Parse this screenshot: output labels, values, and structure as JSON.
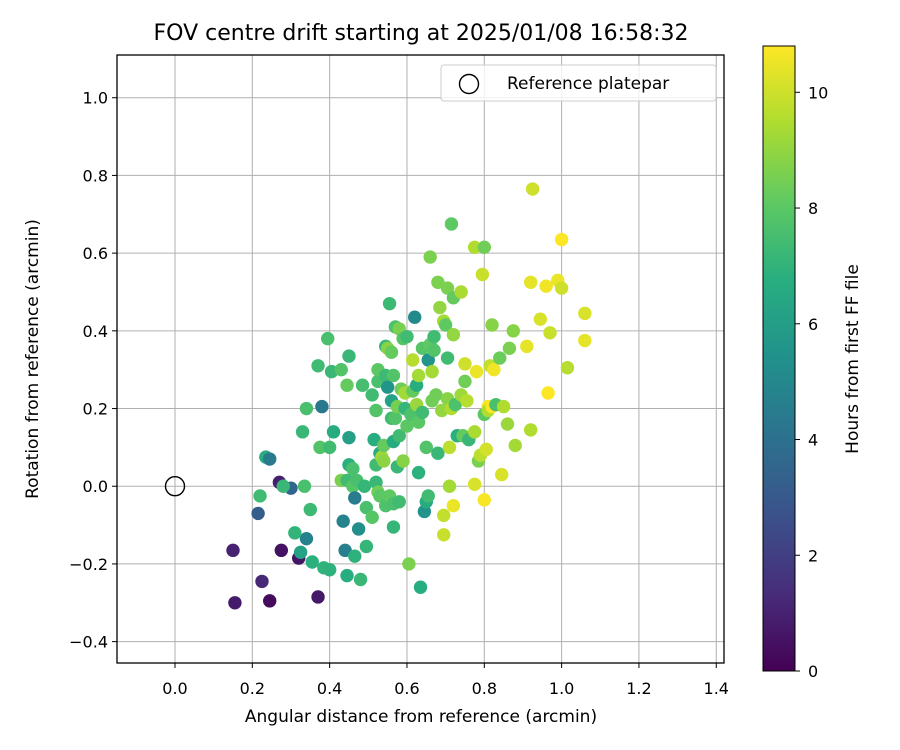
{
  "chart_data": {
    "type": "scatter",
    "title": "FOV centre drift starting at 2025/01/08 16:58:32",
    "xlabel": "Angular distance from reference (arcmin)",
    "ylabel": "Rotation from reference (arcmin)",
    "xlim": [
      -0.15,
      1.42
    ],
    "ylim": [
      -0.455,
      1.11
    ],
    "xticks": [
      0.0,
      0.2,
      0.4,
      0.6,
      0.8,
      1.0,
      1.2,
      1.4
    ],
    "xtick_labels": [
      "0.0",
      "0.2",
      "0.4",
      "0.6",
      "0.8",
      "1.0",
      "1.2",
      "1.4"
    ],
    "yticks": [
      -0.4,
      -0.2,
      0.0,
      0.2,
      0.4,
      0.6,
      0.8,
      1.0
    ],
    "ytick_labels": [
      "−0.4",
      "−0.2",
      "0.0",
      "0.2",
      "0.4",
      "0.6",
      "0.8",
      "1.0"
    ],
    "grid": true,
    "legend": {
      "position": "top-right",
      "entries": [
        "Reference platepar"
      ]
    },
    "reference_point": {
      "x": 0.0,
      "y": 0.0
    },
    "colorbar": {
      "label": "Hours from first FF file",
      "colormap": "viridis",
      "range": [
        0,
        10.8
      ],
      "ticks": [
        0,
        2,
        4,
        6,
        8,
        10
      ],
      "tick_labels": [
        "0",
        "2",
        "4",
        "6",
        "8",
        "10"
      ]
    },
    "points": [
      [
        0.15,
        -0.165,
        1.0
      ],
      [
        0.155,
        -0.3,
        0.8
      ],
      [
        0.225,
        -0.245,
        1.2
      ],
      [
        0.245,
        -0.295,
        0.3
      ],
      [
        0.275,
        -0.165,
        0.5
      ],
      [
        0.27,
        0.01,
        0.9
      ],
      [
        0.32,
        -0.185,
        0.6
      ],
      [
        0.37,
        -0.285,
        0.7
      ],
      [
        0.215,
        -0.07,
        3.2
      ],
      [
        0.235,
        0.075,
        6.6
      ],
      [
        0.245,
        0.07,
        4.4
      ],
      [
        0.3,
        -0.005,
        3.5
      ],
      [
        0.325,
        -0.17,
        6.2
      ],
      [
        0.34,
        -0.135,
        4.7
      ],
      [
        0.22,
        -0.025,
        7.4
      ],
      [
        0.28,
        0.0,
        7.2
      ],
      [
        0.335,
        0.0,
        7.6
      ],
      [
        0.31,
        -0.12,
        7.0
      ],
      [
        0.35,
        -0.06,
        7.3
      ],
      [
        0.355,
        -0.195,
        6.8
      ],
      [
        0.385,
        -0.21,
        7.0
      ],
      [
        0.4,
        -0.215,
        6.9
      ],
      [
        0.33,
        0.14,
        7.2
      ],
      [
        0.34,
        0.2,
        7.6
      ],
      [
        0.375,
        0.1,
        7.8
      ],
      [
        0.38,
        0.205,
        4.3
      ],
      [
        0.37,
        0.31,
        7.4
      ],
      [
        0.395,
        0.38,
        7.6
      ],
      [
        0.4,
        0.1,
        7.4
      ],
      [
        0.41,
        0.14,
        6.6
      ],
      [
        0.405,
        0.295,
        7.2
      ],
      [
        0.43,
        0.3,
        7.8
      ],
      [
        0.43,
        0.015,
        8.6
      ],
      [
        0.435,
        -0.09,
        4.8
      ],
      [
        0.44,
        -0.165,
        4.6
      ],
      [
        0.445,
        -0.23,
        6.7
      ],
      [
        0.445,
        0.015,
        7.4
      ],
      [
        0.45,
        0.335,
        7.2
      ],
      [
        0.445,
        0.26,
        8.2
      ],
      [
        0.45,
        0.125,
        6.1
      ],
      [
        0.45,
        0.055,
        6.8
      ],
      [
        0.46,
        0.045,
        7.6
      ],
      [
        0.46,
        0.0,
        7.9
      ],
      [
        0.465,
        -0.03,
        4.5
      ],
      [
        0.465,
        -0.18,
        6.9
      ],
      [
        0.47,
        0.015,
        7.6
      ],
      [
        0.475,
        -0.11,
        5.3
      ],
      [
        0.48,
        -0.24,
        7.2
      ],
      [
        0.485,
        0.26,
        7.5
      ],
      [
        0.49,
        0.0,
        7.1
      ],
      [
        0.495,
        -0.155,
        7.1
      ],
      [
        0.495,
        -0.055,
        7.6
      ],
      [
        0.51,
        -0.08,
        7.9
      ],
      [
        0.51,
        0.235,
        7.4
      ],
      [
        0.515,
        0.12,
        6.7
      ],
      [
        0.52,
        0.195,
        7.8
      ],
      [
        0.52,
        0.055,
        7.4
      ],
      [
        0.52,
        0.01,
        7.2
      ],
      [
        0.525,
        -0.015,
        8.4
      ],
      [
        0.525,
        0.27,
        7.6
      ],
      [
        0.525,
        0.3,
        8.0
      ],
      [
        0.53,
        0.085,
        6.6
      ],
      [
        0.53,
        -0.025,
        8.0
      ],
      [
        0.535,
        0.075,
        9.2
      ],
      [
        0.54,
        0.105,
        8.2
      ],
      [
        0.54,
        0.065,
        8.9
      ],
      [
        0.545,
        0.285,
        7.3
      ],
      [
        0.545,
        -0.05,
        7.7
      ],
      [
        0.545,
        0.36,
        7.2
      ],
      [
        0.55,
        0.355,
        8.8
      ],
      [
        0.55,
        0.255,
        5.6
      ],
      [
        0.555,
        -0.025,
        8.1
      ],
      [
        0.555,
        0.47,
        7.3
      ],
      [
        0.56,
        0.175,
        7.4
      ],
      [
        0.56,
        0.22,
        6.2
      ],
      [
        0.56,
        0.345,
        8.2
      ],
      [
        0.565,
        0.285,
        7.8
      ],
      [
        0.565,
        0.115,
        6.6
      ],
      [
        0.565,
        -0.105,
        7.1
      ],
      [
        0.565,
        -0.045,
        7.6
      ],
      [
        0.57,
        0.175,
        7.8
      ],
      [
        0.57,
        0.41,
        7.7
      ],
      [
        0.575,
        0.205,
        8.5
      ],
      [
        0.575,
        0.05,
        7.2
      ],
      [
        0.58,
        -0.04,
        7.4
      ],
      [
        0.58,
        0.405,
        8.6
      ],
      [
        0.58,
        0.13,
        7.4
      ],
      [
        0.585,
        0.25,
        8.4
      ],
      [
        0.59,
        0.065,
        8.8
      ],
      [
        0.59,
        0.38,
        7.9
      ],
      [
        0.595,
        0.24,
        9.3
      ],
      [
        0.595,
        0.2,
        7.1
      ],
      [
        0.6,
        0.385,
        7.4
      ],
      [
        0.6,
        0.155,
        8.0
      ],
      [
        0.605,
        -0.2,
        8.6
      ],
      [
        0.61,
        0.185,
        7.7
      ],
      [
        0.615,
        0.245,
        8.2
      ],
      [
        0.615,
        0.325,
        9.6
      ],
      [
        0.62,
        0.435,
        5.1
      ],
      [
        0.625,
        0.21,
        9.1
      ],
      [
        0.625,
        0.26,
        6.7
      ],
      [
        0.63,
        0.165,
        8.0
      ],
      [
        0.63,
        0.285,
        9.3
      ],
      [
        0.63,
        0.035,
        6.9
      ],
      [
        0.635,
        -0.26,
        6.7
      ],
      [
        0.64,
        0.355,
        7.9
      ],
      [
        0.64,
        0.19,
        7.4
      ],
      [
        0.645,
        -0.065,
        5.5
      ],
      [
        0.65,
        -0.04,
        6.6
      ],
      [
        0.65,
        0.1,
        7.8
      ],
      [
        0.655,
        -0.025,
        7.4
      ],
      [
        0.655,
        0.325,
        5.6
      ],
      [
        0.66,
        0.365,
        8.1
      ],
      [
        0.66,
        0.59,
        8.6
      ],
      [
        0.665,
        0.22,
        8.4
      ],
      [
        0.665,
        0.295,
        9.3
      ],
      [
        0.67,
        0.35,
        7.8
      ],
      [
        0.67,
        0.385,
        7.4
      ],
      [
        0.675,
        0.235,
        8.4
      ],
      [
        0.68,
        0.085,
        7.2
      ],
      [
        0.68,
        0.525,
        8.6
      ],
      [
        0.685,
        0.46,
        9.0
      ],
      [
        0.69,
        0.195,
        9.0
      ],
      [
        0.695,
        -0.075,
        9.8
      ],
      [
        0.695,
        -0.125,
        9.9
      ],
      [
        0.695,
        0.425,
        9.3
      ],
      [
        0.7,
        0.415,
        8.1
      ],
      [
        0.705,
        0.33,
        7.4
      ],
      [
        0.705,
        0.225,
        8.8
      ],
      [
        0.705,
        0.51,
        8.6
      ],
      [
        0.71,
        0.1,
        9.7
      ],
      [
        0.71,
        0.0,
        9.3
      ],
      [
        0.715,
        0.2,
        9.5
      ],
      [
        0.715,
        0.675,
        8.1
      ],
      [
        0.72,
        0.485,
        8.2
      ],
      [
        0.72,
        0.39,
        9.0
      ],
      [
        0.72,
        -0.05,
        10.5
      ],
      [
        0.725,
        0.21,
        7.7
      ],
      [
        0.73,
        0.13,
        6.8
      ],
      [
        0.74,
        0.235,
        9.2
      ],
      [
        0.74,
        0.5,
        9.4
      ],
      [
        0.745,
        0.13,
        8.2
      ],
      [
        0.75,
        0.315,
        10.0
      ],
      [
        0.75,
        0.27,
        8.4
      ],
      [
        0.755,
        0.22,
        9.6
      ],
      [
        0.76,
        0.12,
        7.2
      ],
      [
        0.775,
        0.14,
        9.4
      ],
      [
        0.775,
        0.615,
        9.5
      ],
      [
        0.775,
        0.005,
        10.2
      ],
      [
        0.78,
        0.295,
        10.5
      ],
      [
        0.785,
        0.065,
        8.6
      ],
      [
        0.79,
        0.08,
        9.7
      ],
      [
        0.795,
        0.545,
        9.9
      ],
      [
        0.8,
        0.615,
        8.4
      ],
      [
        0.8,
        -0.035,
        10.7
      ],
      [
        0.8,
        0.185,
        8.0
      ],
      [
        0.805,
        0.095,
        10.1
      ],
      [
        0.81,
        0.205,
        10.7
      ],
      [
        0.81,
        0.195,
        9.5
      ],
      [
        0.815,
        0.31,
        9.8
      ],
      [
        0.82,
        0.415,
        8.8
      ],
      [
        0.82,
        0.205,
        10.8
      ],
      [
        0.825,
        0.3,
        10.6
      ],
      [
        0.83,
        0.21,
        7.6
      ],
      [
        0.84,
        0.33,
        8.3
      ],
      [
        0.845,
        0.03,
        10.2
      ],
      [
        0.85,
        0.205,
        9.5
      ],
      [
        0.86,
        0.16,
        9.1
      ],
      [
        0.865,
        0.355,
        8.6
      ],
      [
        0.875,
        0.4,
        8.8
      ],
      [
        0.88,
        0.105,
        9.3
      ],
      [
        0.91,
        0.36,
        10.4
      ],
      [
        0.92,
        0.145,
        9.5
      ],
      [
        0.92,
        0.525,
        10.4
      ],
      [
        0.925,
        0.765,
        10.0
      ],
      [
        0.945,
        0.43,
        10.2
      ],
      [
        0.96,
        0.515,
        10.6
      ],
      [
        0.965,
        0.24,
        10.9
      ],
      [
        0.97,
        0.395,
        9.9
      ],
      [
        0.99,
        0.53,
        10.5
      ],
      [
        1.0,
        0.635,
        10.9
      ],
      [
        1.0,
        0.51,
        10.0
      ],
      [
        1.015,
        0.305,
        9.6
      ],
      [
        1.06,
        0.445,
        10.2
      ],
      [
        1.06,
        0.375,
        10.4
      ]
    ]
  }
}
